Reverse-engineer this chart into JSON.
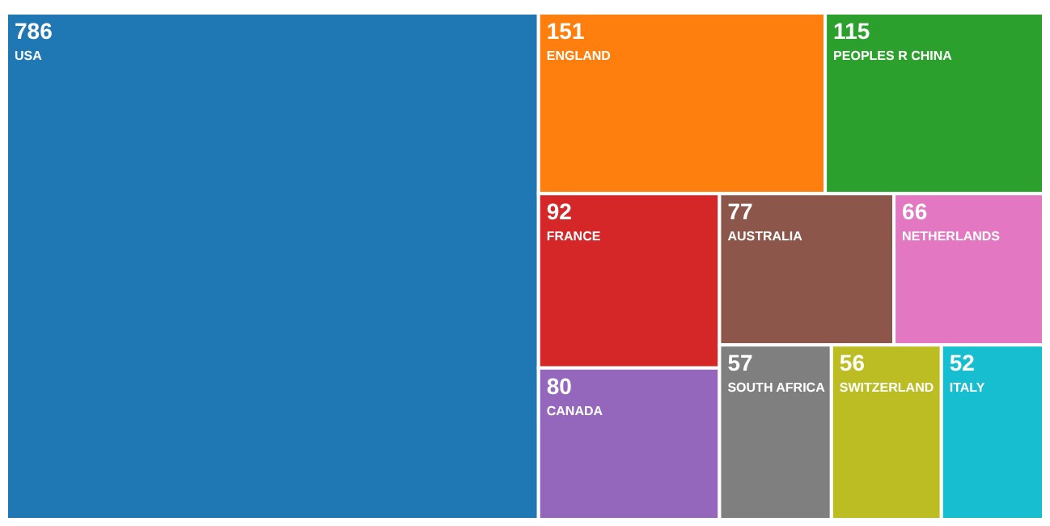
{
  "chart_data": {
    "type": "other",
    "categories": [
      "USA",
      "ENGLAND",
      "PEOPLES R CHINA",
      "FRANCE",
      "CANADA",
      "AUSTRALIA",
      "NETHERLANDS",
      "SOUTH AFRICA",
      "SWITZERLAND",
      "ITALY"
    ],
    "values": [
      786,
      151,
      115,
      92,
      80,
      77,
      66,
      57,
      56,
      52
    ],
    "colors": [
      "#1f77b4",
      "#ff7f0e",
      "#2ca02c",
      "#d62728",
      "#9467bd",
      "#8c564b",
      "#e377c2",
      "#7f7f7f",
      "#bcbd22",
      "#17becf"
    ],
    "data_labels": true
  }
}
